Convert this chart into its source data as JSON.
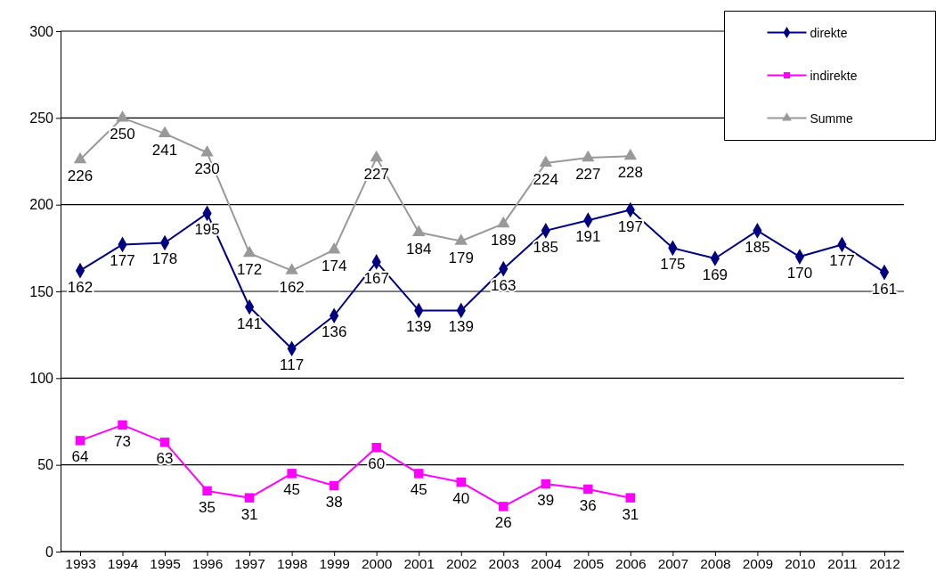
{
  "chart_data": {
    "type": "line",
    "categories": [
      "1993",
      "1994",
      "1995",
      "1996",
      "1997",
      "1998",
      "1999",
      "2000",
      "2001",
      "2002",
      "2003",
      "2004",
      "2005",
      "2006",
      "2007",
      "2008",
      "2009",
      "2010",
      "2011",
      "2012"
    ],
    "series": [
      {
        "name": "direkte",
        "color": "#000080",
        "marker": "diamond",
        "values": [
          162,
          177,
          178,
          195,
          141,
          117,
          136,
          167,
          139,
          139,
          163,
          185,
          191,
          197,
          175,
          169,
          185,
          170,
          177,
          161
        ]
      },
      {
        "name": "indirekte",
        "color": "#ff00ff",
        "marker": "square",
        "values": [
          64,
          73,
          63,
          35,
          31,
          45,
          38,
          60,
          45,
          40,
          26,
          39,
          36,
          31,
          null,
          null,
          null,
          null,
          null,
          null
        ]
      },
      {
        "name": "Summe",
        "color": "#999999",
        "marker": "triangle",
        "values": [
          226,
          250,
          241,
          230,
          172,
          162,
          174,
          227,
          184,
          179,
          189,
          224,
          227,
          228,
          null,
          null,
          null,
          null,
          null,
          null
        ]
      }
    ],
    "ylim": [
      0,
      300
    ],
    "yticks": [
      0,
      50,
      100,
      150,
      200,
      250,
      300
    ],
    "grid": "y",
    "legend": "top right",
    "data_labels": true
  }
}
